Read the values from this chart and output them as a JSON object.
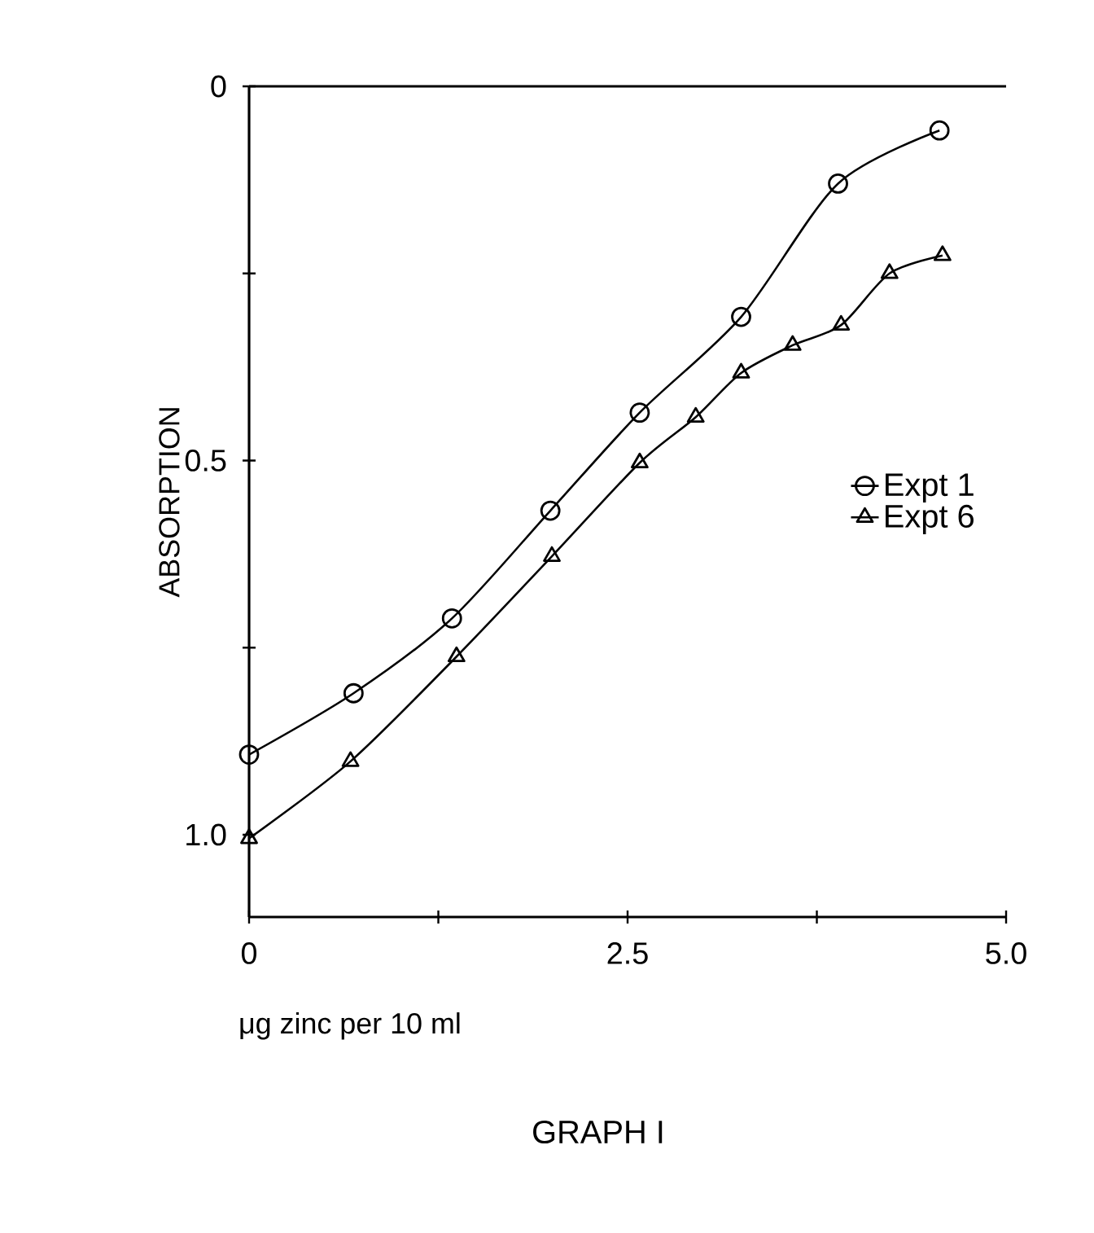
{
  "chart_data": {
    "type": "line",
    "title": "GRAPH I",
    "xlabel": "μg zinc per 10 ml",
    "ylabel": "ABSORPTION",
    "xlim": [
      0,
      5.0
    ],
    "ylim": [
      1.11,
      0
    ],
    "xticks": [
      0,
      {
        "value": 1.25,
        "label": null
      },
      2.5,
      {
        "value": 3.75,
        "label": null
      },
      {
        "value": 5.0,
        "label": "5.0"
      }
    ],
    "yticks": [
      0,
      {
        "value": 0.25,
        "label": null
      },
      0.5,
      {
        "value": 0.75,
        "label": null
      },
      {
        "value": 1.0,
        "label": "1.0"
      }
    ],
    "legend": "right",
    "line_style": "solid",
    "series": [
      {
        "name": "Expt 1",
        "color": "#000000",
        "marker": "circle",
        "x": [
          0,
          0.69,
          1.34,
          1.99,
          2.58,
          3.25,
          3.89,
          4.56
        ],
        "values": [
          0.893,
          0.811,
          0.711,
          0.567,
          0.436,
          0.308,
          0.13,
          0.059
        ]
      },
      {
        "name": "Expt 6",
        "color": "#000000",
        "marker": "triangle",
        "x": [
          0,
          0.67,
          1.37,
          2.0,
          2.58,
          2.95,
          3.25,
          3.59,
          3.91,
          4.23,
          4.58
        ],
        "values": [
          1.005,
          0.902,
          0.762,
          0.628,
          0.503,
          0.442,
          0.383,
          0.346,
          0.319,
          0.25,
          0.226
        ]
      }
    ]
  }
}
